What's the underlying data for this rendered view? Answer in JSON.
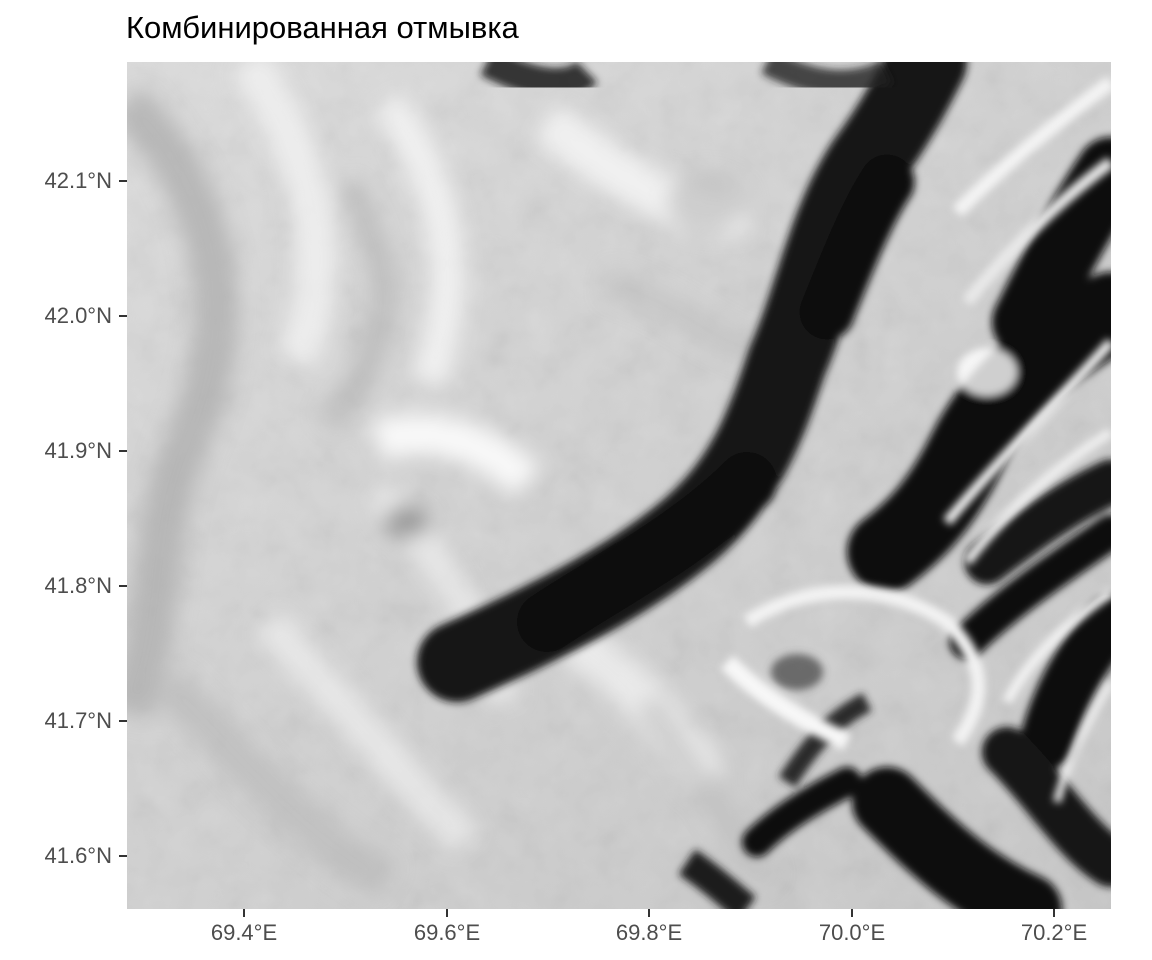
{
  "title": "Комбинированная отмывка",
  "colors": {
    "background": "#ffffff",
    "tick": "#333333",
    "label": "#4d4d4d",
    "relief_light": "#f4f4f4",
    "relief_mid": "#b9b9b9",
    "relief_dark": "#111111"
  },
  "y_axis": {
    "labels": [
      "42.1°N",
      "42.0°N",
      "41.9°N",
      "41.8°N",
      "41.7°N",
      "41.6°N"
    ]
  },
  "x_axis": {
    "labels": [
      "69.4°E",
      "69.6°E",
      "69.8°E",
      "70.0°E",
      "70.2°E"
    ]
  }
}
